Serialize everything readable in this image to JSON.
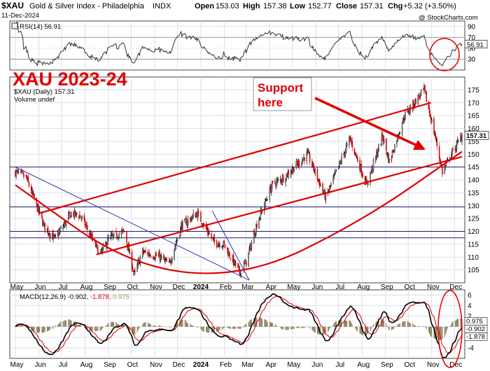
{
  "header": {
    "symbol": "$XAU",
    "name": "Gold & Silver Index - Philadelphia",
    "exchange": "INDX",
    "date": "11-Dec-2024",
    "open_label": "Open",
    "open": "153.03",
    "high_label": "High",
    "high": "157.38",
    "low_label": "Low",
    "low": "152.77",
    "close_label": "Close",
    "close": "157.31",
    "chg_label": "Chg",
    "chg": "+5.32 (+3.50%)",
    "watermark": "@ StockCharts.com"
  },
  "annotations": {
    "big_title": "XAU 2023-24",
    "support_box": "Support\nhere"
  },
  "colors": {
    "price_up": "#000000",
    "price_down": "#cc0000",
    "annotation": "#e00000",
    "trendline_thin": "#3333aa",
    "horizontal_line": "#1a1a6e",
    "grid": "#d4d8e4",
    "rsi": "#333333",
    "macd": "#000000",
    "macd_signal": "#dd0000",
    "histogram": "#8b7f5a"
  },
  "chart_data": [
    {
      "type": "line",
      "panel": "RSI",
      "legend": "RSI(14) 56.91",
      "last_value": 56.91,
      "ylim": [
        10,
        100
      ],
      "yticks": [
        30,
        50,
        70,
        90
      ],
      "bands": [
        30,
        70
      ],
      "x_start": "2023-05-01",
      "x_end": "2024-12-11"
    },
    {
      "type": "candlestick",
      "panel": "price",
      "legend": "$XAU (Daily) 157.31",
      "legend2": "Volume undef",
      "last_value": 157.31,
      "ylim": [
        100,
        180
      ],
      "yticks": [
        105,
        110,
        115,
        120,
        125,
        130,
        135,
        140,
        145,
        150,
        155,
        160,
        165,
        170,
        175
      ],
      "x_start": "2023-05-01",
      "x_end": "2024-12-11",
      "months": [
        "May",
        "Jun",
        "Jul",
        "Aug",
        "Sep",
        "Oct",
        "Nov",
        "Dec",
        "2024",
        "Feb",
        "Mar",
        "Apr",
        "May",
        "Jun",
        "Jul",
        "Aug",
        "Sep",
        "Oct",
        "Nov",
        "Dec"
      ],
      "path_keypoints": [
        [
          "2023-05-01",
          143
        ],
        [
          "2023-05-15",
          141
        ],
        [
          "2023-06-08",
          122
        ],
        [
          "2023-06-22",
          117
        ],
        [
          "2023-07-14",
          127
        ],
        [
          "2023-07-26",
          126
        ],
        [
          "2023-08-21",
          111
        ],
        [
          "2023-09-01",
          117
        ],
        [
          "2023-09-22",
          120
        ],
        [
          "2023-10-05",
          103
        ],
        [
          "2023-10-16",
          112
        ],
        [
          "2023-11-08",
          110
        ],
        [
          "2023-11-20",
          107
        ],
        [
          "2023-12-06",
          122
        ],
        [
          "2023-12-27",
          127
        ],
        [
          "2024-01-18",
          116
        ],
        [
          "2024-01-31",
          115
        ],
        [
          "2024-02-21",
          104
        ],
        [
          "2024-03-01",
          108
        ],
        [
          "2024-03-15",
          123
        ],
        [
          "2024-04-04",
          138
        ],
        [
          "2024-04-20",
          141
        ],
        [
          "2024-05-21",
          150
        ],
        [
          "2024-06-14",
          133
        ],
        [
          "2024-07-16",
          156
        ],
        [
          "2024-08-07",
          138
        ],
        [
          "2024-08-28",
          157
        ],
        [
          "2024-09-06",
          147
        ],
        [
          "2024-09-26",
          165
        ],
        [
          "2024-10-22",
          175
        ],
        [
          "2024-11-07",
          155
        ],
        [
          "2024-11-15",
          143
        ],
        [
          "2024-11-25",
          149
        ],
        [
          "2024-12-11",
          157.31
        ]
      ],
      "horizontal_levels": [
        145,
        129.5,
        120,
        117.5
      ],
      "trendlines": [
        {
          "name": "upper channel",
          "points": [
            [
              "2023-06-01",
              127
            ],
            [
              "2024-10-31",
              170
            ]
          ]
        },
        {
          "name": "lower channel",
          "points": [
            [
              "2023-08-16",
              111
            ],
            [
              "2024-12-11",
              149
            ]
          ]
        },
        {
          "name": "support curve",
          "points": [
            [
              "2023-05-01",
              138
            ],
            [
              "2023-10-01",
              106
            ],
            [
              "2024-03-01",
              102
            ],
            [
              "2024-08-01",
              124
            ],
            [
              "2024-12-11",
              151
            ]
          ]
        },
        {
          "name": "downtrend",
          "points": [
            [
              "2023-05-01",
              145
            ],
            [
              "2024-03-05",
              101
            ]
          ]
        },
        {
          "name": "short downtrend",
          "points": [
            [
              "2024-01-16",
              128
            ],
            [
              "2024-03-05",
              101
            ]
          ]
        }
      ]
    },
    {
      "type": "line",
      "panel": "MACD",
      "legend": "MACD(12,26,9)",
      "macd": -0.902,
      "signal": -1.878,
      "histogram": 0.975,
      "labels": [
        "0.975",
        "-0.902",
        "-1.878"
      ],
      "ylim": [
        -6,
        7
      ],
      "yticks": [
        -4,
        -2,
        0,
        2,
        4,
        6
      ],
      "x_start": "2023-05-01",
      "x_end": "2024-12-11"
    }
  ]
}
